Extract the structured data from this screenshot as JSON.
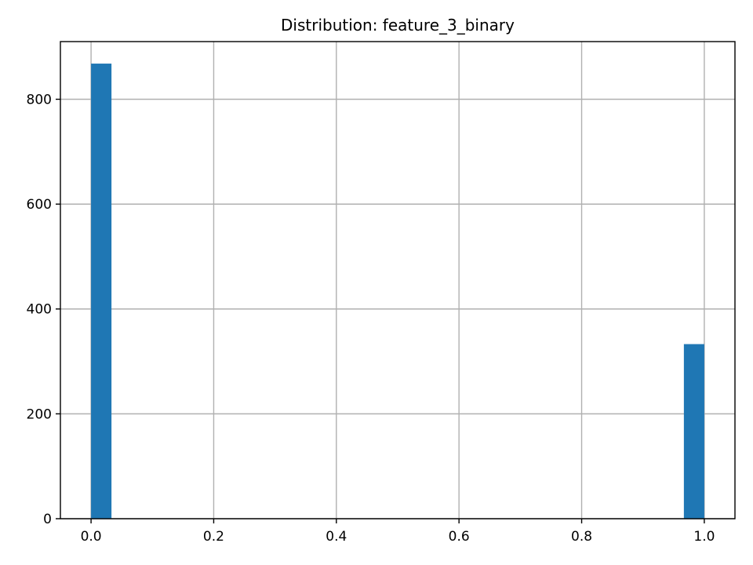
{
  "chart_data": {
    "type": "bar",
    "title": "Distribution: feature_3_binary",
    "xlabel": "",
    "ylabel": "",
    "xlim": [
      -0.05,
      1.05
    ],
    "ylim": [
      0,
      910
    ],
    "x_ticks": [
      0.0,
      0.2,
      0.4,
      0.6,
      0.8,
      1.0
    ],
    "x_tick_labels": [
      "0.0",
      "0.2",
      "0.4",
      "0.6",
      "0.8",
      "1.0"
    ],
    "y_ticks": [
      0,
      200,
      400,
      600,
      800
    ],
    "y_tick_labels": [
      "0",
      "200",
      "400",
      "600",
      "800"
    ],
    "grid": true,
    "bin_width": 0.0333,
    "bins": [
      {
        "x_start": 0.0,
        "x_end": 0.0333,
        "value": 868
      },
      {
        "x_start": 0.9667,
        "x_end": 1.0,
        "value": 333
      }
    ],
    "colors": {
      "bar": "#1f77b4",
      "grid": "#b0b0b0",
      "axis": "#000000"
    }
  }
}
